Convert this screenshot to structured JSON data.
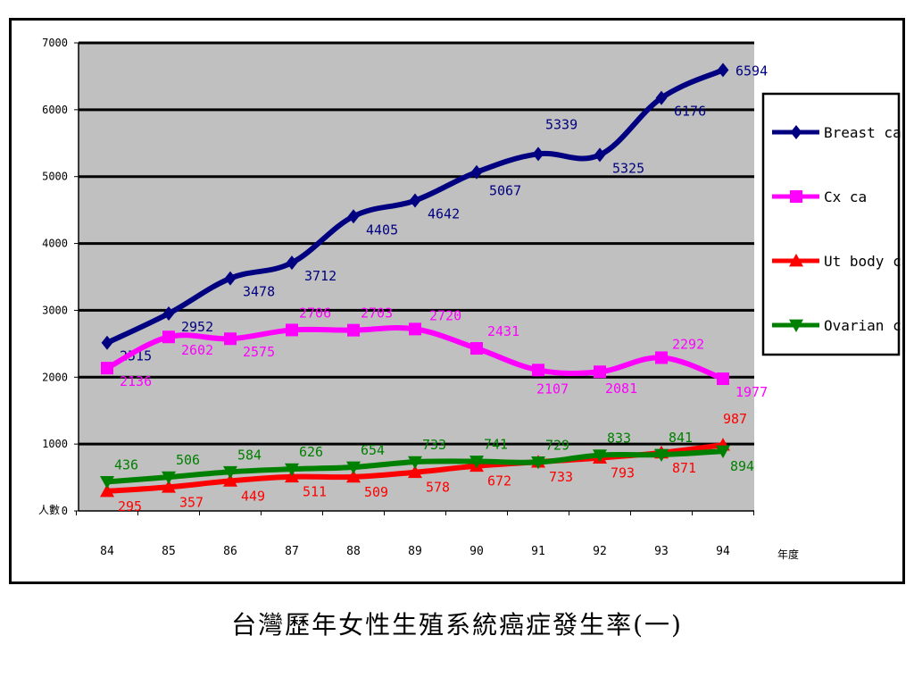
{
  "caption": "台灣歷年女性生殖系統癌症發生率(一)",
  "chart_data": {
    "type": "line",
    "title": "",
    "xlabel": "年度",
    "ylabel": "人數",
    "categories": [
      "84",
      "85",
      "86",
      "87",
      "88",
      "89",
      "90",
      "91",
      "92",
      "93",
      "94"
    ],
    "ylim": [
      0,
      7000
    ],
    "yticks": [
      0,
      1000,
      2000,
      3000,
      4000,
      5000,
      6000,
      7000
    ],
    "grid": true,
    "legend_position": "right",
    "plot_background": "#c0c0c0",
    "series": [
      {
        "name": "Breast ca",
        "color": "#000080",
        "marker": "diamond",
        "values": [
          2515,
          2952,
          3478,
          3712,
          4405,
          4642,
          5067,
          5339,
          5325,
          6176,
          6594
        ]
      },
      {
        "name": "Cx ca",
        "color": "#ff00ff",
        "marker": "square",
        "values": [
          2136,
          2602,
          2575,
          2706,
          2703,
          2720,
          2431,
          2107,
          2081,
          2292,
          1977
        ]
      },
      {
        "name": "Ut body ca",
        "color": "#ff0000",
        "marker": "triangle",
        "values": [
          295,
          357,
          449,
          511,
          509,
          578,
          672,
          733,
          793,
          871,
          987
        ]
      },
      {
        "name": "Ovarian ca",
        "color": "#008000",
        "marker": "triangle-down",
        "values": [
          436,
          506,
          584,
          626,
          654,
          733,
          741,
          729,
          833,
          841,
          894
        ]
      }
    ]
  }
}
